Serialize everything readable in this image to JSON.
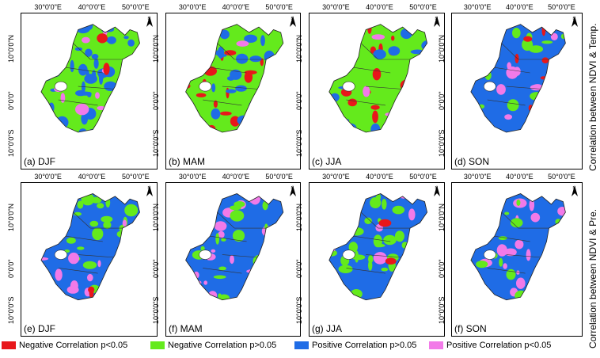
{
  "longitude_ticks": [
    "30°0'0\"E",
    "40°0'0\"E",
    "50°0'0\"E"
  ],
  "latitude_ticks": [
    "10°0'0\"N",
    "0°0'0\"",
    "10°0'0\"S"
  ],
  "panels": [
    {
      "label": "(a) DJF",
      "scheme": "djf_t"
    },
    {
      "label": "(b) MAM",
      "scheme": "mam_t"
    },
    {
      "label": "(c) JJA",
      "scheme": "jja_t"
    },
    {
      "label": "(d) SON",
      "scheme": "son_t"
    },
    {
      "label": "(e) DJF",
      "scheme": "djf_p"
    },
    {
      "label": "(f) MAM",
      "scheme": "mam_p"
    },
    {
      "label": "(g) JJA",
      "scheme": "jja_p"
    },
    {
      "label": "(f) SON",
      "scheme": "son_p"
    }
  ],
  "side_titles": {
    "row1": "Correlation between NDVI & Temp.",
    "row2": "Correlation between NDVI & Pre."
  },
  "legend": [
    {
      "label": "Negative Correlation p<0.05",
      "color": "#e8171a"
    },
    {
      "label": "Negative Correlation p>0.05",
      "color": "#64ea1c"
    },
    {
      "label": "Positive Correlation p>0.05",
      "color": "#1f6ce6"
    },
    {
      "label": "Positive Correlation p<0.05",
      "color": "#f27ae8"
    }
  ],
  "colors": {
    "neg_sig": "#e8171a",
    "neg": "#64ea1c",
    "pos": "#1f6ce6",
    "pos_sig": "#f27ae8"
  }
}
